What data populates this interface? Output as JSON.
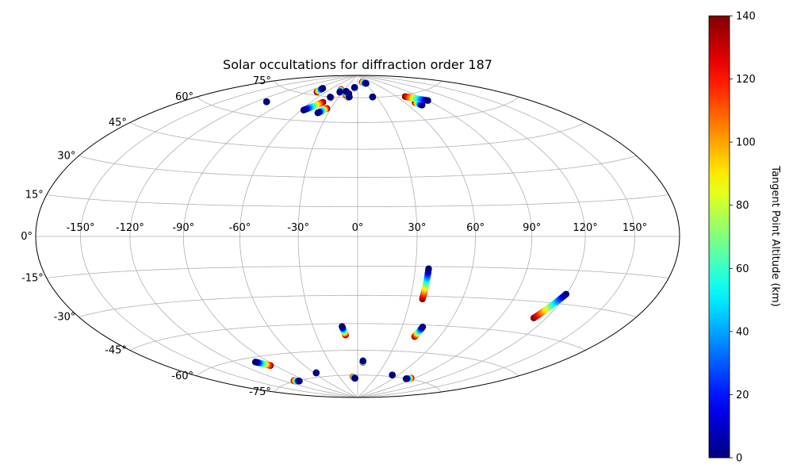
{
  "chart_data": {
    "type": "scatter",
    "projection": "hammer",
    "title": "Solar occultations for diffraction order 187",
    "grid": true,
    "lon_ticks": [
      -150,
      -120,
      -90,
      -60,
      -30,
      0,
      30,
      60,
      90,
      120,
      150
    ],
    "lon_tick_labels": [
      "-150°",
      "-120°",
      "-90°",
      "-60°",
      "-30°",
      "0°",
      "30°",
      "60°",
      "90°",
      "120°",
      "150°"
    ],
    "lat_ticks": [
      75,
      60,
      45,
      30,
      15,
      0,
      -15,
      -30,
      -45,
      -60,
      -75
    ],
    "lat_tick_labels": [
      "75°",
      "60°",
      "45°",
      "30°",
      "15°",
      "0°",
      "-15°",
      "-30°",
      "-45°",
      "-60°",
      "-75°"
    ],
    "colorbar": {
      "label": "Tangent Point Altitude (km)",
      "colormap": "jet",
      "range": [
        0,
        140
      ],
      "ticks": [
        0,
        20,
        40,
        60,
        80,
        100,
        120,
        140
      ],
      "tick_labels": [
        "0",
        "20",
        "40",
        "60",
        "80",
        "100",
        "120",
        "140"
      ]
    },
    "tracks": [
      {
        "lon_start": -57.4,
        "lat_start": 66.0,
        "alt_start": 0,
        "lon_end": -45.2,
        "lat_end": 71.4,
        "alt_end": 140
      },
      {
        "lon_start": -40.5,
        "lat_start": 65.0,
        "alt_start": 0,
        "lon_end": -34.4,
        "lat_end": 67.9,
        "alt_end": 140
      },
      {
        "lon_start": -42.5,
        "lat_start": 74.8,
        "alt_start": 0,
        "lon_end": -40.6,
        "lat_end": 74.5,
        "alt_end": 140
      },
      {
        "lon_start": -16.0,
        "lat_start": 77.6,
        "alt_start": 0,
        "lon_end": -19.4,
        "lat_end": 76.3,
        "alt_end": 140
      },
      {
        "lon_start": -13.2,
        "lat_start": 75.5,
        "alt_start": 0,
        "lon_end": -15.2,
        "lat_end": 75.2,
        "alt_end": 140
      },
      {
        "lon_start": -34.4,
        "lat_start": 78.2,
        "alt_start": 0,
        "lon_end": -37.4,
        "lat_end": 80.0,
        "alt_end": 140
      },
      {
        "lon_start": 23.6,
        "lat_start": 75.3,
        "alt_start": 0,
        "lon_end": 23.6,
        "lat_end": 75.3,
        "alt_end": 140
      },
      {
        "lon_start": 31.6,
        "lat_start": 84.2,
        "alt_start": 0,
        "lon_end": 20.6,
        "lat_end": 85.2,
        "alt_end": 140
      },
      {
        "lon_start": 75.3,
        "lat_start": 68.1,
        "alt_start": 0,
        "lon_end": 71.9,
        "lat_end": 69.9,
        "alt_end": 140
      },
      {
        "lon_start": 90.6,
        "lat_start": 70.0,
        "alt_start": 0,
        "lon_end": 72.2,
        "lat_end": 73.9,
        "alt_end": 140
      },
      {
        "lon_start": -74.8,
        "lat_start": 77.0,
        "alt_start": 0,
        "lon_end": -74.8,
        "lat_end": 77.0,
        "alt_end": 140
      },
      {
        "lon_start": -109.5,
        "lat_start": 67.5,
        "alt_start": 0,
        "lon_end": -109.5,
        "lat_end": 67.5,
        "alt_end": 140
      },
      {
        "lon_start": -78.0,
        "lat_start": 79.4,
        "alt_start": 0,
        "lon_end": -74.8,
        "lat_end": 77.0,
        "alt_end": 140
      },
      {
        "lon_start": -23.3,
        "lat_start": 78.9,
        "alt_start": 0,
        "lon_end": -23.3,
        "lat_end": 78.9,
        "alt_end": 140
      },
      {
        "lon_start": -8.1,
        "lat_start": 81.6,
        "alt_start": 0,
        "lon_end": -8.1,
        "lat_end": 81.6,
        "alt_end": 140
      },
      {
        "lon_start": 37.0,
        "lat_start": -16.1,
        "alt_start": 0,
        "lon_end": 37.0,
        "lat_end": -31.5,
        "alt_end": 140
      },
      {
        "lon_start": 119.8,
        "lat_start": -25.6,
        "alt_start": 0,
        "lon_end": 111.9,
        "lat_end": -37.5,
        "alt_end": 140
      },
      {
        "lon_start": -10.5,
        "lat_start": -46.5,
        "alt_start": 0,
        "lon_end": -8.8,
        "lat_end": -51.3,
        "alt_end": 140
      },
      {
        "lon_start": 43.9,
        "lat_start": -46.1,
        "alt_start": 0,
        "lon_end": 41.9,
        "lat_end": -51.5,
        "alt_end": 140
      },
      {
        "lon_start": -102.3,
        "lat_start": -62.4,
        "alt_start": 0,
        "lon_end": -94.5,
        "lat_end": -65.3,
        "alt_end": 140
      },
      {
        "lon_start": -101.3,
        "lat_start": -75.4,
        "alt_start": 0,
        "lon_end": -106.7,
        "lat_end": -74.6,
        "alt_end": 140
      },
      {
        "lon_start": -57.2,
        "lat_start": -72.4,
        "alt_start": 0,
        "lon_end": -57.2,
        "lat_end": -72.4,
        "alt_end": 140
      },
      {
        "lon_start": 5.6,
        "lat_start": -66.2,
        "alt_start": 0,
        "lon_end": 5.6,
        "lat_end": -67.2,
        "alt_end": 140
      },
      {
        "lon_start": -4.5,
        "lat_start": -77.1,
        "alt_start": 0,
        "lon_end": -7.8,
        "lat_end": -76.2,
        "alt_end": 140
      },
      {
        "lon_start": 80.2,
        "lat_start": -75.2,
        "alt_start": 0,
        "lon_end": 85.1,
        "lat_end": -74.4,
        "alt_end": 140
      },
      {
        "lon_start": 51.7,
        "lat_start": -74.0,
        "alt_start": 0,
        "lon_end": 51.7,
        "lat_end": -74.0,
        "alt_end": 140
      }
    ]
  }
}
